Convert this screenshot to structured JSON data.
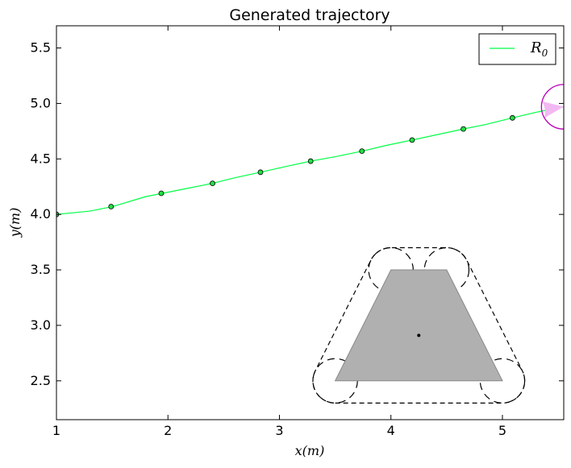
{
  "chart_data": {
    "type": "line",
    "title": "Generated trajectory",
    "xlabel": "x(m)",
    "ylabel": "y(m)",
    "xlim": [
      1.0,
      5.55
    ],
    "ylim": [
      2.15,
      5.7
    ],
    "x_ticks": [
      1,
      2,
      3,
      4,
      5
    ],
    "y_ticks": [
      2.5,
      3.0,
      3.5,
      4.0,
      4.5,
      5.0,
      5.5
    ],
    "x_tick_labels": [
      "1",
      "2",
      "3",
      "4",
      "5"
    ],
    "y_tick_labels": [
      "2.5",
      "3.0",
      "3.5",
      "4.0",
      "4.5",
      "5.0",
      "5.5"
    ],
    "legend_position": "top-right",
    "colors": {
      "trajectory": "#00ff44",
      "marker_fill": "#22dd44",
      "obstacle_fill": "#b0b0b0",
      "robot_circle": "#bb00bb",
      "robot_fov": "#f2b8f2"
    },
    "series": [
      {
        "name": "R_0",
        "legend_main": "R",
        "legend_sub": "0",
        "x": [
          1.0,
          1.1,
          1.2,
          1.3,
          1.4,
          1.5,
          1.6,
          1.7,
          1.8,
          1.9,
          2.0,
          2.2,
          2.4,
          2.6,
          2.83,
          3.05,
          3.28,
          3.5,
          3.74,
          3.95,
          4.19,
          4.42,
          4.65,
          4.85,
          5.09,
          5.3,
          5.55
        ],
        "y": [
          4.0,
          4.01,
          4.02,
          4.03,
          4.05,
          4.07,
          4.1,
          4.13,
          4.16,
          4.18,
          4.2,
          4.24,
          4.28,
          4.33,
          4.38,
          4.43,
          4.48,
          4.52,
          4.57,
          4.62,
          4.67,
          4.72,
          4.77,
          4.81,
          4.87,
          4.92,
          4.97
        ]
      }
    ],
    "markers": {
      "x": [
        1.0,
        1.49,
        1.94,
        2.4,
        2.83,
        3.28,
        3.74,
        4.19,
        4.65,
        5.09
      ],
      "y": [
        4.0,
        4.07,
        4.19,
        4.28,
        4.38,
        4.48,
        4.57,
        4.67,
        4.77,
        4.87
      ]
    },
    "obstacle": {
      "vertices": [
        [
          3.5,
          2.5
        ],
        [
          5.0,
          2.5
        ],
        [
          4.5,
          3.5
        ],
        [
          4.0,
          3.5
        ]
      ],
      "center": [
        4.25,
        2.91
      ],
      "inflated_radius": 0.2
    },
    "robot": {
      "position": [
        5.55,
        4.97
      ],
      "radius": 0.2,
      "heading_deg": 8
    }
  }
}
